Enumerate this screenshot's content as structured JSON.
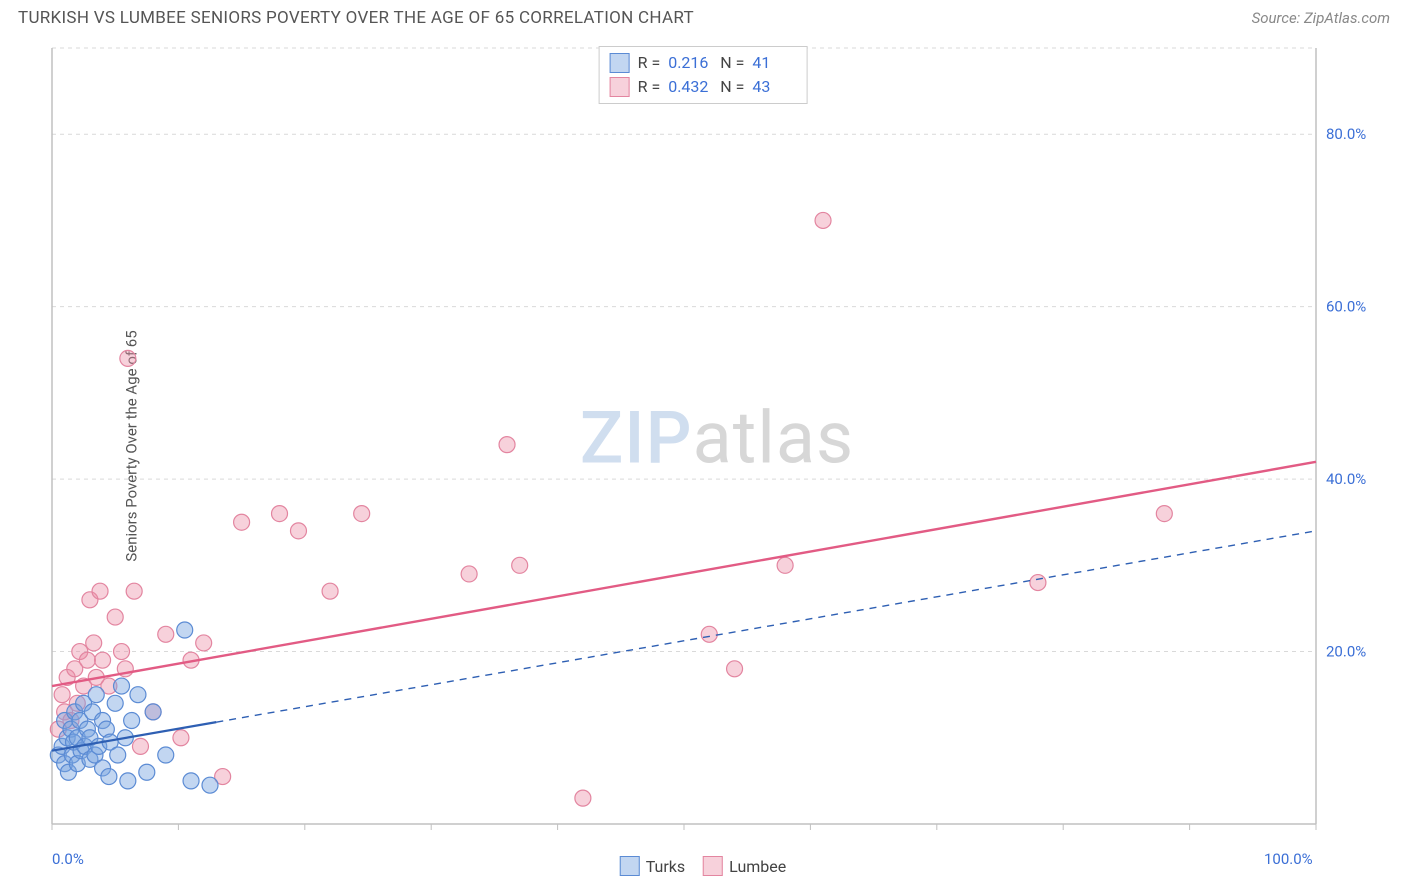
{
  "header": {
    "title": "TURKISH VS LUMBEE SENIORS POVERTY OVER THE AGE OF 65 CORRELATION CHART",
    "source_prefix": "Source: ",
    "source_name": "ZipAtlas.com"
  },
  "y_axis_label": "Seniors Poverty Over the Age of 65",
  "watermark": {
    "part1": "ZIP",
    "part2": "atlas"
  },
  "stats": {
    "series1": {
      "r_label": "R =",
      "r_value": "0.216",
      "n_label": "N =",
      "n_value": "41"
    },
    "series2": {
      "r_label": "R =",
      "r_value": "0.432",
      "n_label": "N =",
      "n_value": "43"
    }
  },
  "legend": {
    "series1_name": "Turks",
    "series2_name": "Lumbee"
  },
  "chart": {
    "type": "scatter",
    "xlim": [
      0,
      100
    ],
    "ylim": [
      0,
      90
    ],
    "x_ticks": [
      0,
      10,
      20,
      30,
      40,
      50,
      60,
      70,
      80,
      90,
      100
    ],
    "x_tick_labels_shown": {
      "0": "0.0%",
      "100": "100.0%"
    },
    "y_gridlines": [
      20,
      40,
      60,
      80
    ],
    "y_tick_labels": {
      "20": "20.0%",
      "40": "40.0%",
      "60": "60.0%",
      "80": "80.0%"
    },
    "background_color": "#ffffff",
    "grid_color": "#d9d9d9",
    "grid_dash": "4,4",
    "axis_color": "#c0c0c0",
    "marker_radius": 8,
    "marker_stroke_width": 1.2,
    "series": {
      "turks": {
        "fill": "rgba(120,165,225,0.45)",
        "stroke": "#5b8bd4",
        "points": [
          [
            0.5,
            8
          ],
          [
            0.8,
            9
          ],
          [
            1.0,
            12
          ],
          [
            1.0,
            7
          ],
          [
            1.2,
            10
          ],
          [
            1.3,
            6
          ],
          [
            1.5,
            11
          ],
          [
            1.6,
            8
          ],
          [
            1.7,
            9.5
          ],
          [
            1.8,
            13
          ],
          [
            2.0,
            7
          ],
          [
            2.0,
            10
          ],
          [
            2.2,
            12
          ],
          [
            2.3,
            8.5
          ],
          [
            2.5,
            14
          ],
          [
            2.6,
            9
          ],
          [
            2.8,
            11
          ],
          [
            3.0,
            10
          ],
          [
            3.0,
            7.5
          ],
          [
            3.2,
            13
          ],
          [
            3.4,
            8
          ],
          [
            3.5,
            15
          ],
          [
            3.7,
            9
          ],
          [
            4.0,
            12
          ],
          [
            4.0,
            6.5
          ],
          [
            4.3,
            11
          ],
          [
            4.5,
            5.5
          ],
          [
            4.6,
            9.5
          ],
          [
            5.0,
            14
          ],
          [
            5.2,
            8
          ],
          [
            5.5,
            16
          ],
          [
            5.8,
            10
          ],
          [
            6.0,
            5
          ],
          [
            6.3,
            12
          ],
          [
            6.8,
            15
          ],
          [
            7.5,
            6
          ],
          [
            8.0,
            13
          ],
          [
            9.0,
            8
          ],
          [
            10.5,
            22.5
          ],
          [
            11.0,
            5
          ],
          [
            12.5,
            4.5
          ]
        ],
        "regression": {
          "color": "#2e5fb3",
          "width": 2.2,
          "solid_from_x": 0,
          "solid_to_x": 13,
          "dashed_to_x": 100,
          "y_at_x0": 8.5,
          "y_at_x100": 34
        }
      },
      "lumbee": {
        "fill": "rgba(235,140,165,0.40)",
        "stroke": "#e385a0",
        "points": [
          [
            0.5,
            11
          ],
          [
            0.8,
            15
          ],
          [
            1.0,
            13
          ],
          [
            1.2,
            17
          ],
          [
            1.5,
            12
          ],
          [
            1.8,
            18
          ],
          [
            2.0,
            14
          ],
          [
            2.2,
            20
          ],
          [
            2.5,
            16
          ],
          [
            2.8,
            19
          ],
          [
            3.0,
            26
          ],
          [
            3.3,
            21
          ],
          [
            3.5,
            17
          ],
          [
            3.8,
            27
          ],
          [
            4.0,
            19
          ],
          [
            4.5,
            16
          ],
          [
            5.0,
            24
          ],
          [
            5.5,
            20
          ],
          [
            5.8,
            18
          ],
          [
            6.0,
            54
          ],
          [
            6.5,
            27
          ],
          [
            7.0,
            9
          ],
          [
            8.0,
            13
          ],
          [
            9.0,
            22
          ],
          [
            10.2,
            10
          ],
          [
            11.0,
            19
          ],
          [
            12.0,
            21
          ],
          [
            13.5,
            5.5
          ],
          [
            15.0,
            35
          ],
          [
            18.0,
            36
          ],
          [
            19.5,
            34
          ],
          [
            22.0,
            27
          ],
          [
            24.5,
            36
          ],
          [
            33.0,
            29
          ],
          [
            36.0,
            44
          ],
          [
            37.0,
            30
          ],
          [
            42.0,
            3
          ],
          [
            52.0,
            22
          ],
          [
            54.0,
            18
          ],
          [
            58.0,
            30
          ],
          [
            61.0,
            70
          ],
          [
            78.0,
            28
          ],
          [
            88.0,
            36
          ]
        ],
        "regression": {
          "color": "#e25b84",
          "width": 2.4,
          "solid_from_x": 0,
          "solid_to_x": 100,
          "y_at_x0": 16,
          "y_at_x100": 42
        }
      }
    }
  }
}
